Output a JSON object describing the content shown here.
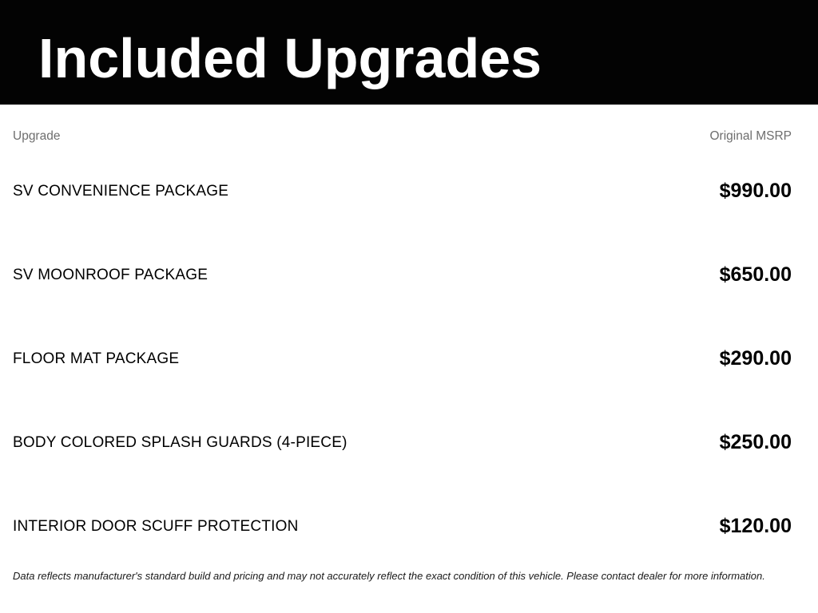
{
  "header": {
    "title": "Included Upgrades"
  },
  "table": {
    "columns": {
      "upgrade": "Upgrade",
      "msrp": "Original MSRP"
    },
    "rows": [
      {
        "name": "SV CONVENIENCE PACKAGE",
        "price": "$990.00"
      },
      {
        "name": "SV MOONROOF PACKAGE",
        "price": "$650.00"
      },
      {
        "name": "FLOOR MAT PACKAGE",
        "price": "$290.00"
      },
      {
        "name": "BODY COLORED SPLASH GUARDS (4-PIECE)",
        "price": "$250.00"
      },
      {
        "name": "INTERIOR DOOR SCUFF PROTECTION",
        "price": "$120.00"
      }
    ]
  },
  "footer": {
    "disclaimer": "Data reflects manufacturer's standard build and pricing and may not accurately reflect the exact condition of this vehicle. Please contact dealer for more information."
  },
  "colors": {
    "banner_background": "#030303",
    "title_text": "#ffffff",
    "column_header_text": "#6e6e6e",
    "row_text": "#000000",
    "price_text": "#000000",
    "disclaimer_text": "#1a1a1a"
  }
}
